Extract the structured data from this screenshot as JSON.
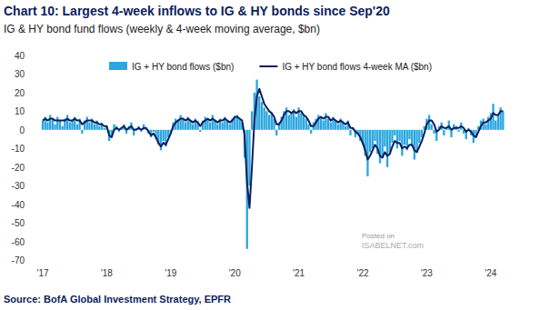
{
  "chart_data": {
    "type": "bar",
    "title": "Chart 10: Largest 4-week inflows to IG & HY bonds since Sep'20",
    "subtitle": "IG & HY bond fund flows (weekly & 4-week moving average, $bn)",
    "source": "Source: BofA Global Investment Strategy, EPFR",
    "annotations": [
      "Posted on",
      "ISABELNET.com"
    ],
    "legend": "top",
    "grid": false,
    "ylim": [
      -70,
      40
    ],
    "yticks": [
      -70,
      -60,
      -50,
      -40,
      -30,
      -20,
      -10,
      0,
      10,
      20,
      30,
      40
    ],
    "categories": [
      "'17",
      null,
      null,
      null,
      null,
      null,
      null,
      null,
      null,
      null,
      null,
      null,
      null,
      null,
      null,
      null,
      null,
      null,
      null,
      null,
      null,
      null,
      null,
      null,
      null,
      null,
      "'18",
      null,
      null,
      null,
      null,
      null,
      null,
      null,
      null,
      null,
      null,
      null,
      null,
      null,
      null,
      null,
      null,
      null,
      null,
      null,
      null,
      null,
      null,
      null,
      null,
      null,
      "'19",
      null,
      null,
      null,
      null,
      null,
      null,
      null,
      null,
      null,
      null,
      null,
      null,
      null,
      null,
      null,
      null,
      null,
      null,
      null,
      null,
      null,
      null,
      null,
      null,
      null,
      "'20",
      null,
      null,
      null,
      null,
      null,
      null,
      null,
      null,
      null,
      null,
      null,
      null,
      null,
      null,
      null,
      null,
      null,
      null,
      null,
      null,
      null,
      null,
      null,
      null,
      null,
      "'21",
      null,
      null,
      null,
      null,
      null,
      null,
      null,
      null,
      null,
      null,
      null,
      null,
      null,
      null,
      null,
      null,
      null,
      null,
      null,
      null,
      null,
      null,
      null,
      null,
      null,
      "'22",
      null,
      null,
      null,
      null,
      null,
      null,
      null,
      null,
      null,
      null,
      null,
      null,
      null,
      null,
      null,
      null,
      null,
      null,
      null,
      null,
      null,
      null,
      null,
      null,
      null,
      "'23",
      null,
      null,
      null,
      null,
      null,
      null,
      null,
      null,
      null,
      null,
      null,
      null,
      null,
      null,
      null,
      null,
      null,
      null,
      null,
      null,
      null,
      null,
      null,
      null,
      null,
      "'24",
      null,
      null,
      null,
      null,
      null
    ],
    "series": [
      {
        "name": "IG + HY bond flows ($bn)",
        "type": "bar",
        "color": "#2ba6e0",
        "values": [
          5,
          7,
          4,
          8,
          6,
          3,
          7,
          5,
          2,
          6,
          8,
          4,
          5,
          7,
          3,
          6,
          -2,
          5,
          7,
          4,
          6,
          3,
          5,
          2,
          4,
          1,
          2,
          -6,
          -4,
          3,
          2,
          -1,
          1,
          3,
          -2,
          2,
          4,
          -3,
          1,
          2,
          -1,
          3,
          1,
          -2,
          -4,
          -1,
          -5,
          -8,
          -11,
          -6,
          -9,
          -4,
          -2,
          4,
          6,
          5,
          8,
          6,
          4,
          7,
          5,
          3,
          6,
          4,
          -1,
          5,
          7,
          6,
          4,
          8,
          5,
          3,
          6,
          4,
          7,
          5,
          3,
          6,
          7,
          8,
          6,
          4,
          -15,
          -64,
          -30,
          10,
          20,
          27,
          18,
          15,
          12,
          10,
          8,
          9,
          6,
          -3,
          4,
          7,
          10,
          12,
          8,
          9,
          11,
          7,
          12,
          9,
          8,
          6,
          3,
          -2,
          4,
          6,
          8,
          7,
          5,
          9,
          6,
          4,
          7,
          5,
          3,
          6,
          4,
          2,
          5,
          -3,
          1,
          -4,
          -2,
          -6,
          -8,
          -14,
          -25,
          -12,
          -10,
          -6,
          -13,
          -18,
          -15,
          -9,
          -20,
          -12,
          -7,
          -3,
          -10,
          -6,
          -14,
          -8,
          -11,
          -5,
          -9,
          -16,
          -12,
          -7,
          -4,
          2,
          6,
          8,
          3,
          -2,
          -6,
          2,
          4,
          -3,
          1,
          5,
          -4,
          3,
          2,
          -1,
          4,
          -2,
          -5,
          1,
          -3,
          -7,
          -4,
          2,
          5,
          6,
          3,
          7,
          9,
          14,
          5,
          8,
          12,
          10
        ]
      },
      {
        "name": "IG + HY bond flows 4-week MA ($bn)",
        "type": "line",
        "color": "#0d1f5c",
        "line_style": "solid",
        "values": [
          5,
          6,
          5,
          6,
          6,
          5,
          5,
          5,
          5,
          5,
          6,
          5,
          5,
          6,
          5,
          5,
          3,
          4,
          5,
          5,
          5,
          4,
          4,
          3,
          3,
          2,
          2,
          -3,
          -4,
          0,
          1,
          0,
          1,
          2,
          0,
          1,
          2,
          0,
          0,
          1,
          0,
          1,
          1,
          -1,
          -3,
          -2,
          -4,
          -7,
          -9,
          -7,
          -8,
          -5,
          -2,
          2,
          4,
          5,
          6,
          6,
          5,
          6,
          5,
          4,
          5,
          4,
          2,
          4,
          5,
          6,
          5,
          6,
          5,
          4,
          5,
          5,
          6,
          5,
          4,
          5,
          7,
          7,
          6,
          5,
          -3,
          -28,
          -42,
          -20,
          5,
          18,
          22,
          18,
          14,
          12,
          10,
          9,
          7,
          3,
          3,
          5,
          8,
          10,
          10,
          9,
          10,
          9,
          10,
          10,
          8,
          7,
          5,
          2,
          2,
          4,
          6,
          7,
          6,
          7,
          7,
          5,
          6,
          5,
          4,
          5,
          4,
          3,
          4,
          1,
          1,
          -1,
          -2,
          -4,
          -7,
          -11,
          -16,
          -14,
          -11,
          -8,
          -10,
          -14,
          -15,
          -12,
          -14,
          -13,
          -9,
          -6,
          -7,
          -7,
          -10,
          -9,
          -10,
          -8,
          -8,
          -11,
          -12,
          -9,
          -6,
          -2,
          3,
          5,
          5,
          3,
          -1,
          0,
          2,
          1,
          1,
          2,
          0,
          1,
          1,
          1,
          2,
          1,
          -1,
          0,
          -1,
          -3,
          -4,
          -1,
          2,
          4,
          4,
          5,
          6,
          9,
          8,
          8,
          10,
          10
        ]
      }
    ]
  }
}
